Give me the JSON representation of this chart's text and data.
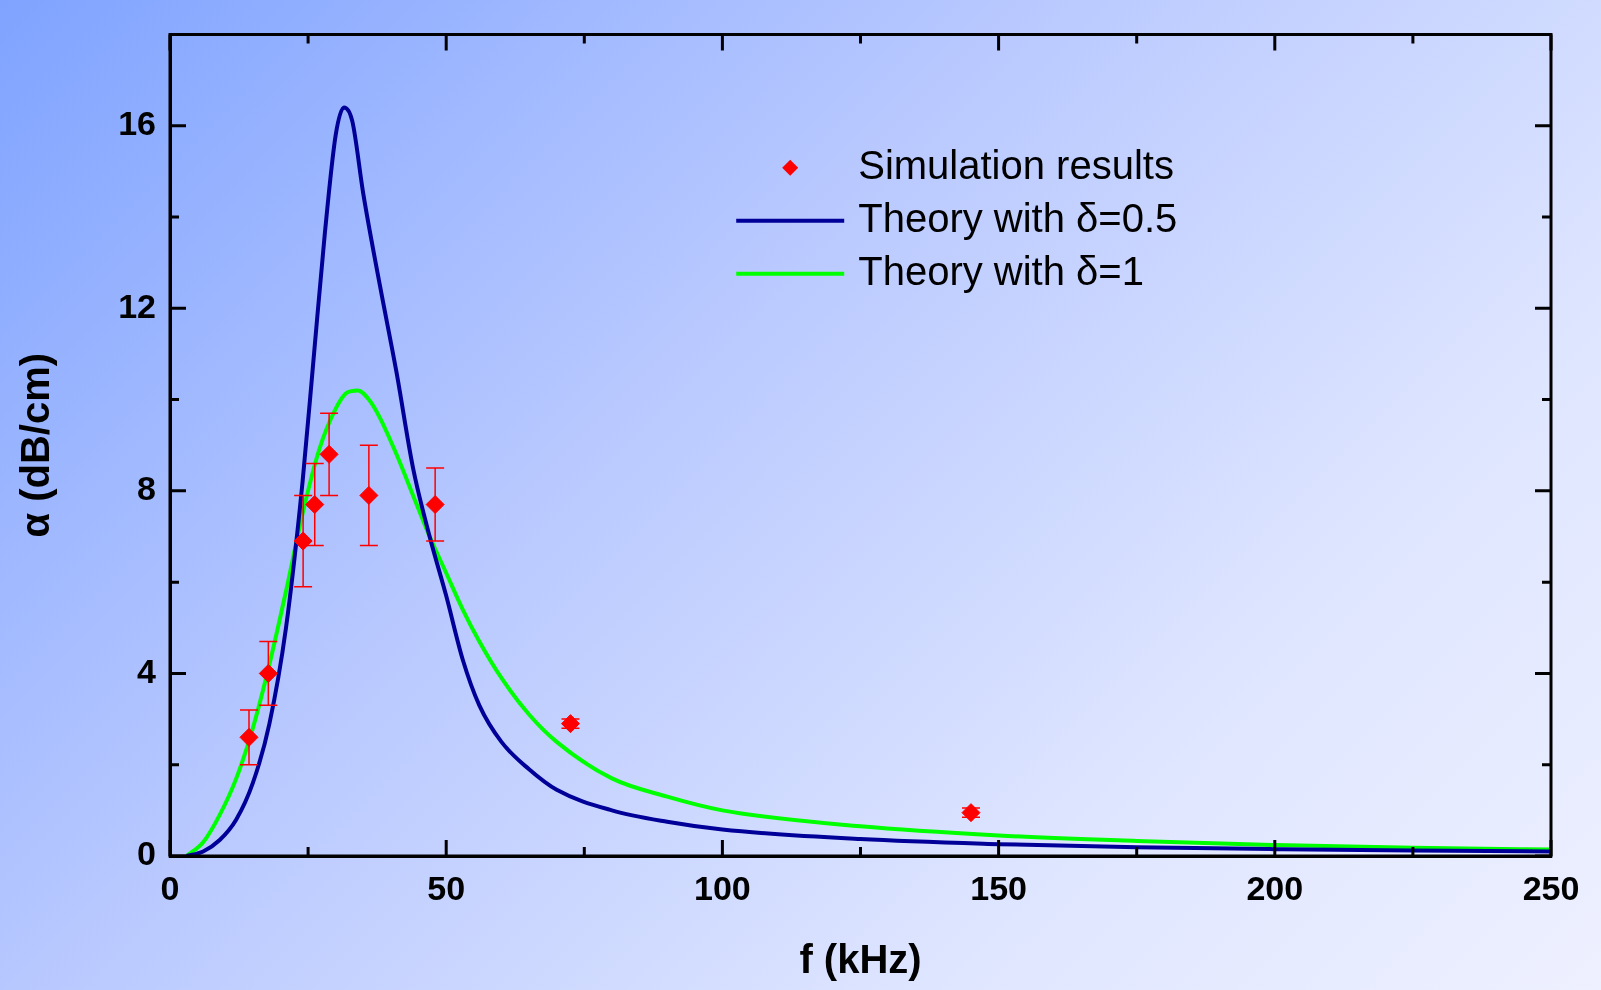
{
  "chart_data": {
    "type": "line",
    "xlabel": "f (kHz)",
    "ylabel": "α (dB/cm)",
    "xlim": [
      0,
      250
    ],
    "xticks": [
      0,
      {
        "value": 25,
        "label": null
      },
      50,
      {
        "value": 75,
        "label": null
      },
      100,
      {
        "value": 125,
        "label": null
      },
      150,
      {
        "value": 175,
        "label": null
      },
      200,
      {
        "value": 225,
        "label": null
      },
      250
    ],
    "ylim": [
      0,
      18
    ],
    "yticks": [
      0,
      {
        "value": 2,
        "label": null
      },
      4,
      {
        "value": 6,
        "label": null
      },
      8,
      {
        "value": 10,
        "label": null
      },
      12,
      {
        "value": 14,
        "label": null
      },
      16
    ],
    "grid": false,
    "legend": "top right",
    "series": [
      {
        "name": "Simulation results",
        "type": "scatter",
        "marker": "diamond",
        "color": "#ff0000",
        "x": [
          14.3,
          17.8,
          24.1,
          26.2,
          28.8,
          36.0,
          48.0,
          72.5,
          145
        ],
        "values": [
          2.6,
          4.0,
          6.9,
          7.7,
          8.8,
          7.9,
          7.7,
          2.9,
          0.95
        ],
        "errors": [
          [
            2.0,
            3.2
          ],
          [
            3.3,
            4.7
          ],
          [
            5.9,
            7.9
          ],
          [
            6.8,
            8.6
          ],
          [
            7.9,
            9.7
          ],
          [
            6.8,
            9.0
          ],
          [
            6.9,
            8.5
          ],
          0.1,
          0.1
        ]
      },
      {
        "name": "Theory with δ=0.5",
        "marker": "none",
        "color": "#000099",
        "x": [
          3,
          6,
          9,
          12,
          15,
          18,
          21,
          24,
          26,
          28,
          30,
          31.5,
          33,
          35,
          38,
          41,
          44,
          47,
          50,
          53,
          56,
          60,
          65,
          70,
          80,
          90,
          100,
          125,
          150,
          175,
          200,
          225,
          250
        ],
        "values": [
          0,
          0.1,
          0.35,
          0.8,
          1.6,
          2.9,
          5.0,
          8.2,
          10.9,
          13.6,
          15.8,
          16.4,
          16.1,
          14.5,
          12.5,
          10.6,
          8.5,
          7.0,
          5.7,
          4.3,
          3.3,
          2.5,
          1.9,
          1.45,
          1.0,
          0.75,
          0.58,
          0.37,
          0.26,
          0.19,
          0.15,
          0.12,
          0.1
        ]
      },
      {
        "name": "Theory with δ=1",
        "marker": "none",
        "color": "#00ff00",
        "x": [
          3,
          6,
          9,
          12,
          15,
          18,
          21,
          24,
          27,
          30,
          32,
          34,
          36,
          38,
          41,
          44,
          47,
          50,
          53,
          56,
          60,
          65,
          70,
          80,
          90,
          100,
          125,
          150,
          175,
          200,
          225,
          250
        ],
        "values": [
          0,
          0.3,
          0.9,
          1.7,
          2.8,
          4.2,
          5.8,
          7.5,
          8.9,
          9.8,
          10.15,
          10.2,
          10.0,
          9.6,
          8.8,
          7.9,
          7.0,
          6.2,
          5.4,
          4.7,
          3.9,
          3.1,
          2.5,
          1.7,
          1.3,
          1.0,
          0.65,
          0.45,
          0.33,
          0.24,
          0.18,
          0.14
        ]
      }
    ]
  }
}
